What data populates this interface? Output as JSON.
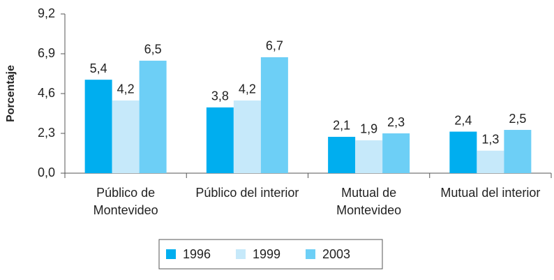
{
  "chart_data": {
    "type": "bar",
    "y_label": "Porcentaje",
    "categories": [
      "Público de Montevideo",
      "Público del interior",
      "Mutual de Montevideo",
      "Mutual del interior"
    ],
    "series": [
      {
        "name": "1996",
        "color": "#00aeef",
        "values": [
          5.4,
          3.8,
          2.1,
          2.4
        ],
        "value_labels": [
          "5,4",
          "3,8",
          "2,1",
          "2,4"
        ]
      },
      {
        "name": "1999",
        "color": "#c6e9fa",
        "values": [
          4.2,
          4.2,
          1.9,
          1.3
        ],
        "value_labels": [
          "4,2",
          "4,2",
          "1,9",
          "1,3"
        ]
      },
      {
        "name": "2003",
        "color": "#6dcff6",
        "values": [
          6.5,
          6.7,
          2.3,
          2.5
        ],
        "value_labels": [
          "6,5",
          "6,7",
          "2,3",
          "2,5"
        ]
      }
    ],
    "ylim": [
      0,
      9.2
    ],
    "yticks": [
      {
        "value": 0,
        "label": "0,0"
      },
      {
        "value": 2.3,
        "label": "2,3"
      },
      {
        "value": 4.6,
        "label": "4,6"
      },
      {
        "value": 6.9,
        "label": "6,9"
      },
      {
        "value": 9.2,
        "label": "9,2"
      }
    ],
    "grid": false
  }
}
